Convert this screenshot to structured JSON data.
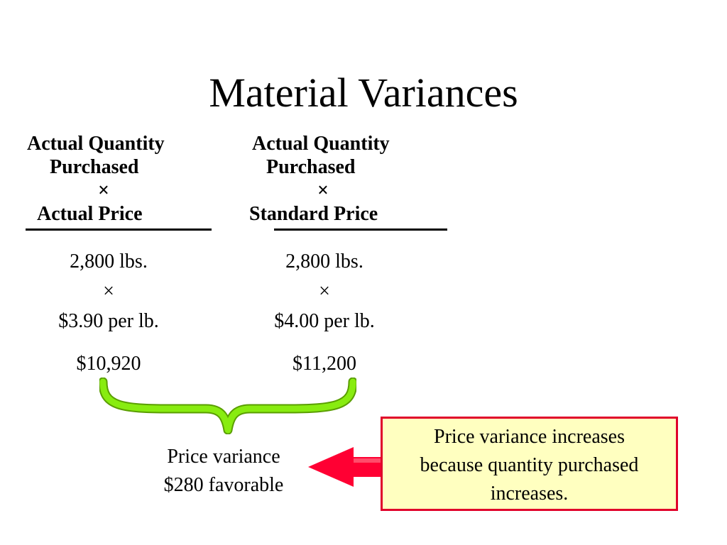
{
  "title": "Material Variances",
  "left_header": {
    "line1": "Actual Quantity",
    "line2": "Purchased",
    "operator": "×",
    "line3": "Actual Price"
  },
  "right_header": {
    "line1": "Actual Quantity",
    "line2": "Purchased",
    "operator": "×",
    "line3": "Standard Price"
  },
  "left_values": {
    "quantity": "2,800 lbs.",
    "operator": "×",
    "price": "$3.90 per lb.",
    "total": "$10,920"
  },
  "right_values": {
    "quantity": "2,800 lbs.",
    "operator": "×",
    "price": "$4.00 per lb.",
    "total": "$11,200"
  },
  "variance": {
    "line1": "Price variance",
    "line2": "$280 favorable"
  },
  "callout": {
    "line1": "Price variance increases",
    "line2": "because quantity purchased",
    "line3": "increases."
  },
  "colors": {
    "brace": "#80e000",
    "arrow": "#ff0033",
    "callout_fill": "#ffffc0",
    "callout_border": "#e0002a"
  }
}
